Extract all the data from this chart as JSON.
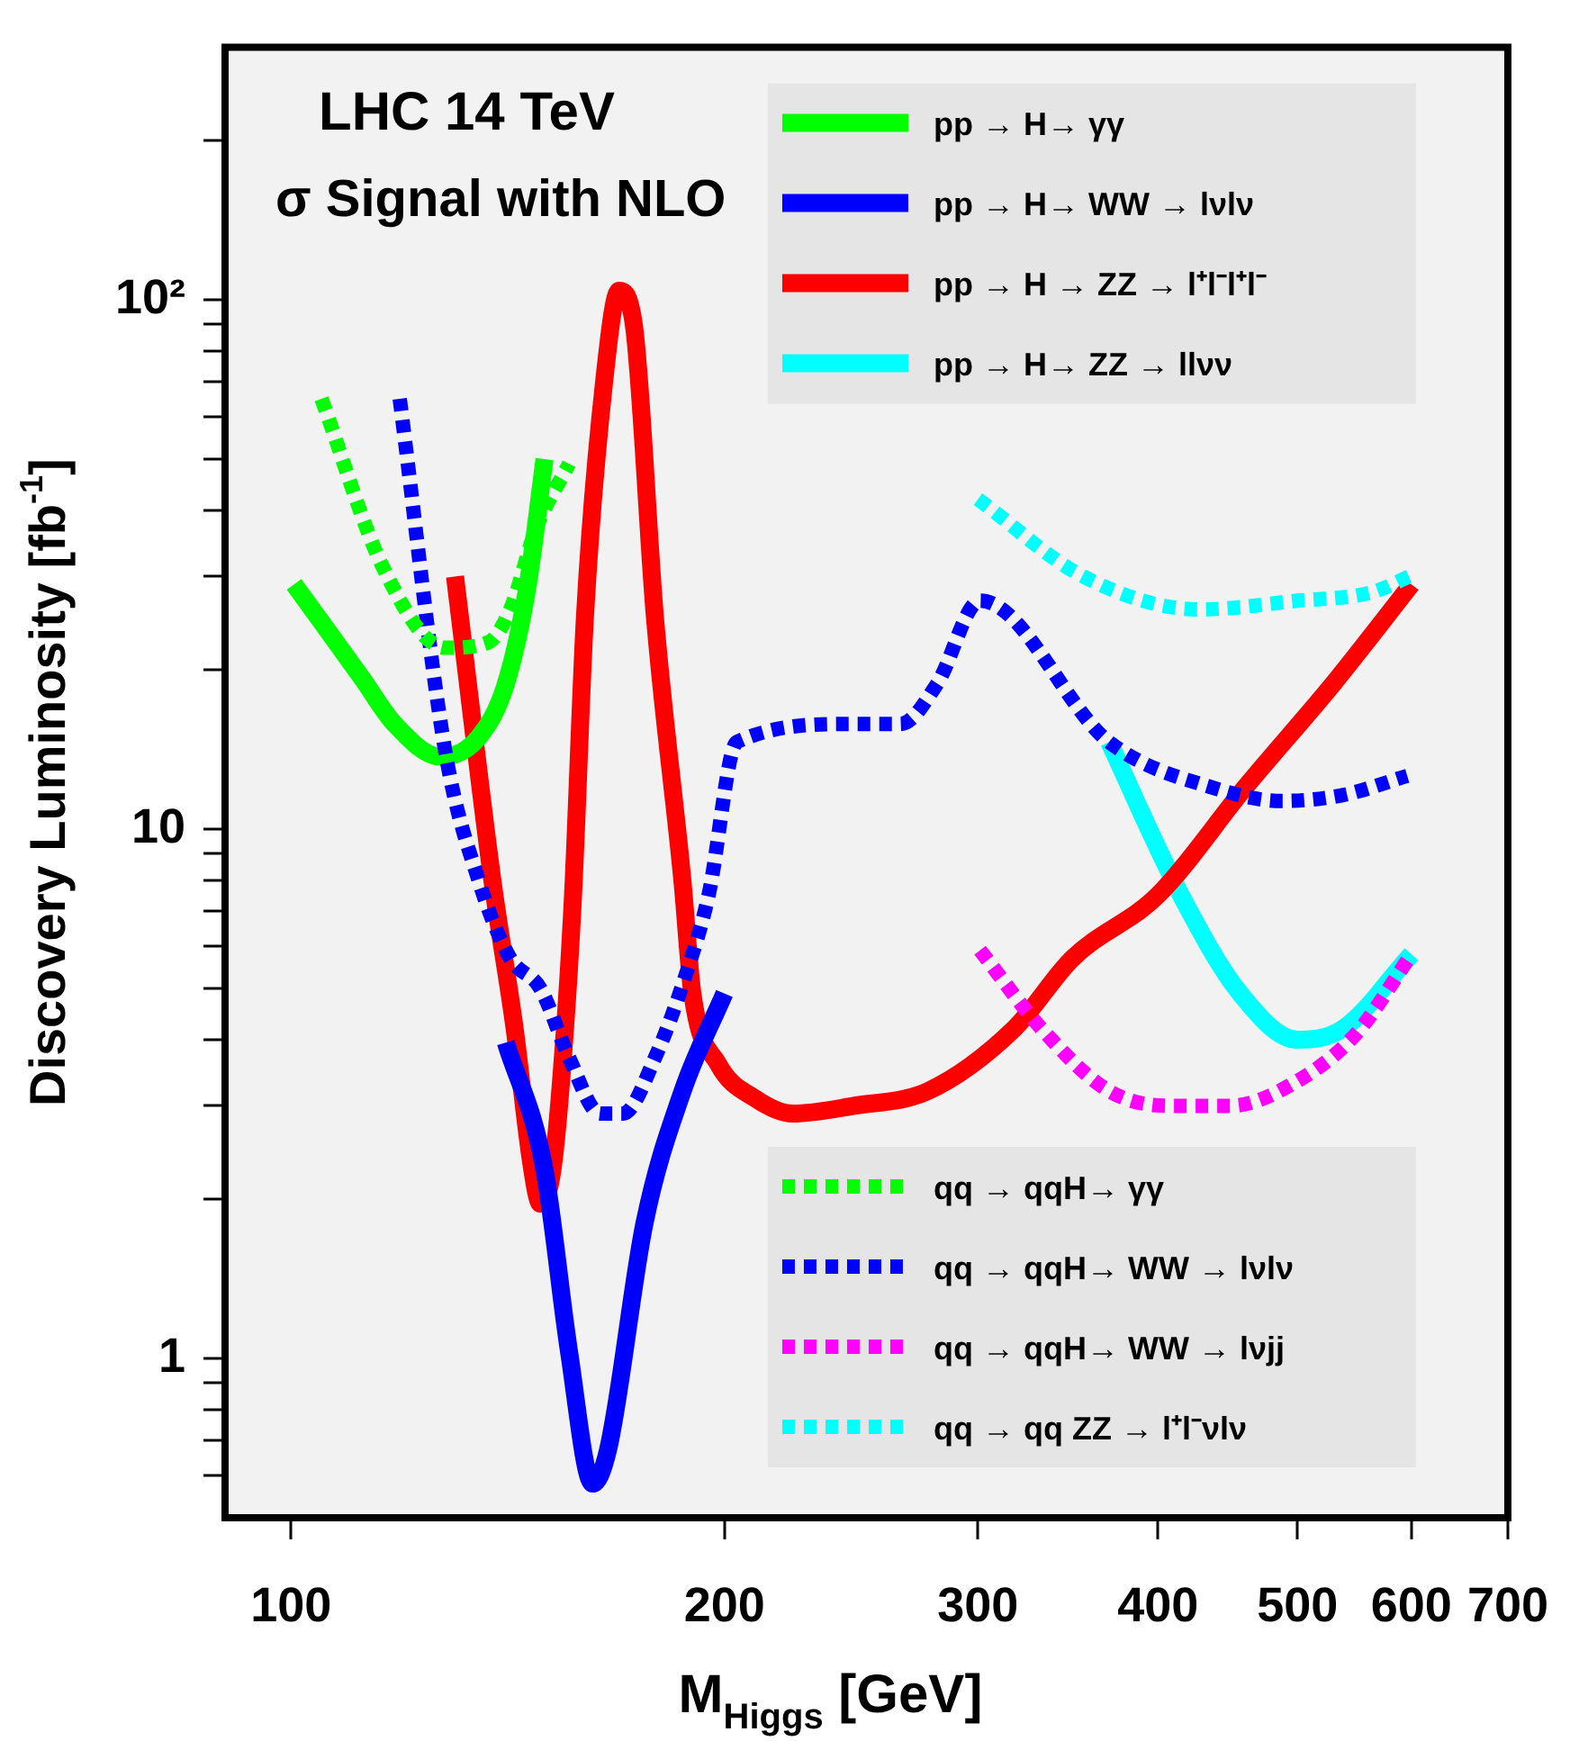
{
  "chart_data": {
    "type": "line",
    "xlabel": "M$_{Higgs}$ [GeV]",
    "ylabel": "Discovery Luminosity [fb$^{-1}$]",
    "annotations": [
      "LHC 14 TeV",
      "σ Signal with NLO"
    ],
    "log": "xy",
    "grid": false,
    "legend": "right",
    "marker": "none",
    "xlim": [
      90,
      700
    ],
    "xticks": [
      100,
      200,
      300,
      400,
      500,
      600,
      700
    ],
    "ylim": [
      0.5,
      300
    ],
    "yticks": [
      {
        "value": 0.6,
        "label": null
      },
      {
        "value": 0.7,
        "label": null
      },
      {
        "value": 0.8,
        "label": null
      },
      {
        "value": 0.9,
        "label": null
      },
      1,
      {
        "value": 2,
        "label": null
      },
      {
        "value": 3,
        "label": null
      },
      {
        "value": 4,
        "label": null
      },
      {
        "value": 5,
        "label": null
      },
      {
        "value": 6,
        "label": null
      },
      {
        "value": 7,
        "label": null
      },
      {
        "value": 8,
        "label": null
      },
      {
        "value": 9,
        "label": null
      },
      10,
      {
        "value": 20,
        "label": null
      },
      {
        "value": 30,
        "label": null
      },
      {
        "value": 40,
        "label": null
      },
      {
        "value": 50,
        "label": null
      },
      {
        "value": 60,
        "label": null
      },
      {
        "value": 70,
        "label": null
      },
      {
        "value": 80,
        "label": null
      },
      {
        "value": 90,
        "label": null
      },
      {
        "value": 100,
        "label": "10²"
      },
      {
        "value": 200,
        "label": null
      }
    ],
    "series": [
      {
        "name": "pp → H→ γγ",
        "color": "#00ff00",
        "line_style": "solid",
        "x": [
          100.5,
          112,
          118,
          127,
          135,
          141,
          146,
          150
        ],
        "values": [
          29,
          19.3,
          15.8,
          13.7,
          14.9,
          18.8,
          28.8,
          50
        ]
      },
      {
        "name": "pp → H→ WW → lνlν",
        "color": "#0000ff",
        "line_style": "solid",
        "x": [
          141,
          150,
          156,
          162,
          166,
          176,
          187,
          200
        ],
        "values": [
          3.95,
          2.27,
          1.03,
          0.58,
          0.67,
          1.8,
          3.19,
          4.89
        ]
      },
      {
        "name": "pp → H → ZZ → l⁺l⁻l⁺l⁻",
        "color": "#ff0000",
        "line_style": "solid",
        "x": [
          130,
          138,
          143,
          147,
          149,
          152,
          155,
          157,
          160,
          165,
          169,
          173,
          179,
          187,
          190,
          198,
          210,
          223,
          246,
          277,
          318,
          349,
          400,
          460,
          531,
          600
        ],
        "values": [
          30,
          8,
          4.2,
          2.3,
          1.96,
          2.3,
          4.2,
          7.5,
          25,
          70,
          104,
          90,
          25,
          8,
          4.9,
          3.6,
          3.1,
          2.9,
          3,
          3.2,
          4.2,
          5.7,
          7.5,
          12,
          19,
          29
        ]
      },
      {
        "name": "pp → H→ ZZ → llνν",
        "color": "#00ffff",
        "line_style": "solid",
        "x": [
          370,
          414,
          456,
          500,
          538,
          600
        ],
        "values": [
          14.6,
          7.6,
          4.9,
          4.0,
          4.2,
          5.8
        ]
      },
      {
        "name": "qq → qqH→ γγ",
        "color": "#00ff00",
        "line_style": "dashed",
        "x": [
          105,
          116,
          128,
          137,
          142,
          148,
          156
        ],
        "values": [
          65,
          31,
          22,
          22.5,
          26,
          37,
          49
        ]
      },
      {
        "name": "qq → qqH→ WW → lνlν",
        "color": "#0000ff",
        "line_style": "dashed",
        "x": [
          119,
          128,
          135,
          142,
          149,
          156,
          164,
          170,
          179,
          188,
          195,
          204,
          246,
          265,
          281,
          301,
          370,
          440,
          488,
          538,
          596
        ],
        "values": [
          65,
          14,
          8,
          5.7,
          5,
          3.7,
          2.9,
          2.9,
          3.7,
          5.3,
          7.5,
          14.6,
          15.8,
          15.8,
          18.8,
          27,
          14.6,
          11.9,
          11.3,
          11.6,
          12.6
        ]
      },
      {
        "name": "qq → qqH→ WW → lνjj",
        "color": "#ff00ff",
        "line_style": "dashed",
        "x": [
          301,
          332,
          370,
          408,
          449,
          496,
          549,
          600
        ],
        "values": [
          5.9,
          4.2,
          3.2,
          3.0,
          3.0,
          3.3,
          4.1,
          5.8
        ]
      },
      {
        "name": "qq → qq ZZ → l⁺l⁻νlν",
        "color": "#00ffff",
        "line_style": "dashed",
        "x": [
          300,
          355,
          428,
          500,
          563,
          598
        ],
        "values": [
          42,
          30,
          26,
          27,
          28,
          30
        ]
      }
    ]
  }
}
